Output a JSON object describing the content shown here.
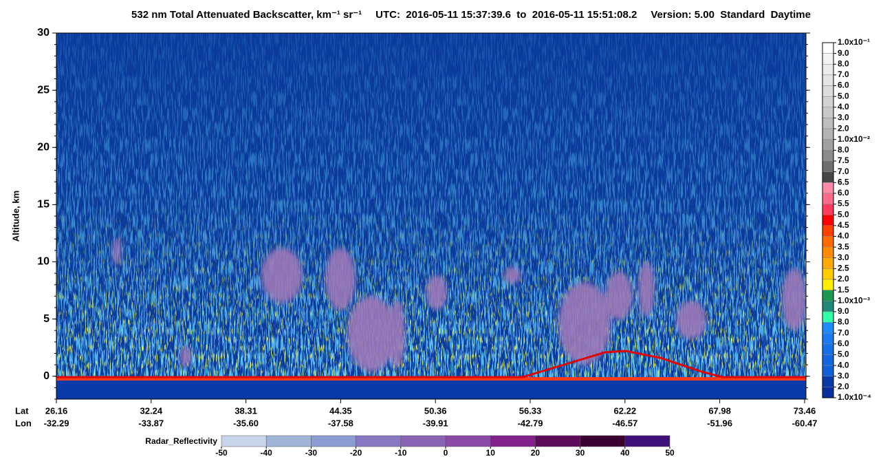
{
  "chart_data": {
    "type": "heatmap",
    "title": "532 nm Total Attenuated Backscatter, km⁻¹ sr⁻¹",
    "time_range": "UTC:  2016-05-11 15:37:39.6  to  2016-05-11 15:51:08.2",
    "version": "Version: 5.00  Standard  Daytime",
    "ylabel": "Altitude, km",
    "ylim": [
      -2,
      30
    ],
    "yticks": [
      0,
      5,
      10,
      15,
      20,
      25,
      30
    ],
    "lat_label": "Lat",
    "lon_label": "Lon",
    "lat": [
      "26.16",
      "32.24",
      "38.31",
      "44.35",
      "50.36",
      "56.33",
      "62.22",
      "67.98",
      "73.46"
    ],
    "lon": [
      "-32.29",
      "-33.87",
      "-35.60",
      "-37.58",
      "-39.91",
      "-42.79",
      "-46.57",
      "-51.96",
      "-60.47"
    ],
    "colorbar": {
      "labels": [
        "1.0x10⁻¹",
        "9.0",
        "8.0",
        "7.0",
        "6.0",
        "5.0",
        "4.0",
        "3.0",
        "2.0",
        "1.0x10⁻²",
        "8.0",
        "7.5",
        "7.0",
        "6.5",
        "6.0",
        "5.5",
        "5.0",
        "4.5",
        "4.0",
        "3.5",
        "3.0",
        "2.5",
        "2.0",
        "1.5",
        "1.0x10⁻³",
        "9.0",
        "8.0",
        "7.0",
        "6.0",
        "5.0",
        "4.0",
        "3.0",
        "2.0",
        "1.0x10⁻⁴"
      ],
      "colors": [
        "#ffffff",
        "#f4f4f4",
        "#ececec",
        "#e4e4e4",
        "#dcdcdc",
        "#d2d2d2",
        "#c8c8c8",
        "#bebebe",
        "#b4b4b4",
        "#a0a0a0",
        "#8c8c8c",
        "#6e6e6e",
        "#464646",
        "#ff8aa8",
        "#ff6a8a",
        "#ff3a5a",
        "#ff0000",
        "#ff4000",
        "#ff6a00",
        "#ff8c00",
        "#ffaa00",
        "#ffcc00",
        "#ffee00",
        "#1a9a50",
        "#208a78",
        "#30ffa8",
        "#1e8cff",
        "#1a7cf0",
        "#1670e8",
        "#1266e0",
        "#1060d8",
        "#0a3aa8",
        "#0830a0"
      ]
    },
    "radar": {
      "label": "Radar_Reflectivity",
      "lim": [
        -50,
        50
      ],
      "ticks": [
        -50,
        -40,
        -30,
        -20,
        -10,
        0,
        10,
        20,
        30,
        40,
        50
      ],
      "colors": [
        "#c8d4e8",
        "#a0b4d8",
        "#8c9cd0",
        "#8878c0",
        "#8a64b4",
        "#8c4aa8",
        "#84208c",
        "#5c0a5a",
        "#3c0030",
        "#40107a"
      ]
    }
  }
}
